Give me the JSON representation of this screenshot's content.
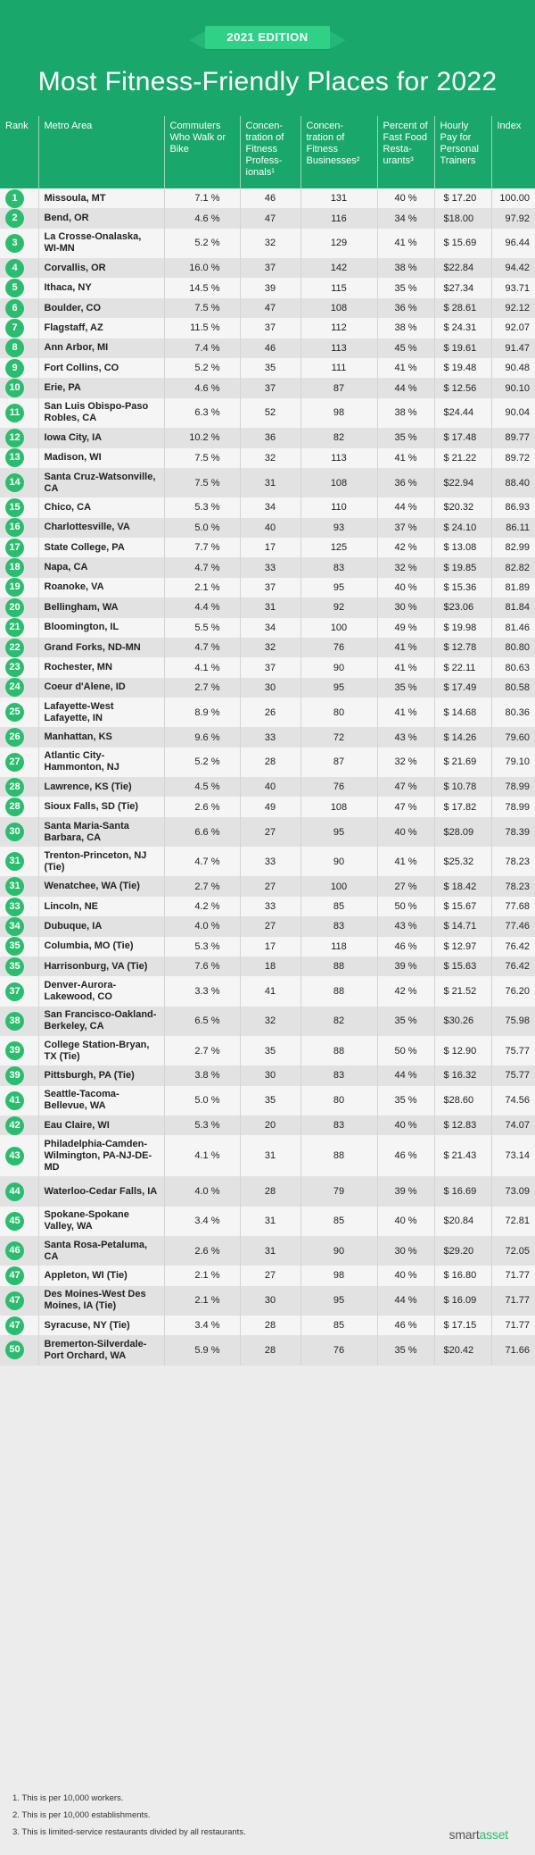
{
  "banner": "2021 EDITION",
  "title": "Most Fitness-Friendly Places for 2022",
  "columns": [
    "Rank",
    "Metro Area",
    "Commuters Who Walk or Bike",
    "Concen- tration of Fitness Profess- ionals¹",
    "Concen- tration of Fitness Businesses²",
    "Percent of Fast Food Resta- urants³",
    "Hourly Pay for Personal Trainers",
    "Index"
  ],
  "rows": [
    {
      "rank": "1",
      "metro": "Missoula, MT",
      "walk": "7.1 %",
      "pros": "46",
      "biz": "131",
      "ff": "40 %",
      "pay": "$ 17.20",
      "index": "100.00"
    },
    {
      "rank": "2",
      "metro": "Bend, OR",
      "walk": "4.6 %",
      "pros": "47",
      "biz": "116",
      "ff": "34 %",
      "pay": "$18.00",
      "index": "97.92"
    },
    {
      "rank": "3",
      "metro": "La Crosse-Onalaska, WI-MN",
      "walk": "5.2 %",
      "pros": "32",
      "biz": "129",
      "ff": "41 %",
      "pay": "$ 15.69",
      "index": "96.44"
    },
    {
      "rank": "4",
      "metro": "Corvallis, OR",
      "walk": "16.0 %",
      "pros": "37",
      "biz": "142",
      "ff": "38 %",
      "pay": "$22.84",
      "index": "94.42"
    },
    {
      "rank": "5",
      "metro": "Ithaca, NY",
      "walk": "14.5 %",
      "pros": "39",
      "biz": "115",
      "ff": "35 %",
      "pay": "$27.34",
      "index": "93.71"
    },
    {
      "rank": "6",
      "metro": "Boulder, CO",
      "walk": "7.5 %",
      "pros": "47",
      "biz": "108",
      "ff": "36 %",
      "pay": "$ 28.61",
      "index": "92.12"
    },
    {
      "rank": "7",
      "metro": "Flagstaff, AZ",
      "walk": "11.5 %",
      "pros": "37",
      "biz": "112",
      "ff": "38 %",
      "pay": "$ 24.31",
      "index": "92.07"
    },
    {
      "rank": "8",
      "metro": "Ann Arbor, MI",
      "walk": "7.4 %",
      "pros": "46",
      "biz": "113",
      "ff": "45 %",
      "pay": "$  19.61",
      "index": "91.47"
    },
    {
      "rank": "9",
      "metro": "Fort Collins, CO",
      "walk": "5.2 %",
      "pros": "35",
      "biz": "111",
      "ff": "41 %",
      "pay": "$ 19.48",
      "index": "90.48"
    },
    {
      "rank": "10",
      "metro": "Erie, PA",
      "walk": "4.6 %",
      "pros": "37",
      "biz": "87",
      "ff": "44 %",
      "pay": "$ 12.56",
      "index": "90.10"
    },
    {
      "rank": "11",
      "metro": "San Luis Obispo-Paso Robles, CA",
      "walk": "6.3 %",
      "pros": "52",
      "biz": "98",
      "ff": "38 %",
      "pay": "$24.44",
      "index": "90.04"
    },
    {
      "rank": "12",
      "metro": "Iowa City, IA",
      "walk": "10.2 %",
      "pros": "36",
      "biz": "82",
      "ff": "35 %",
      "pay": "$ 17.48",
      "index": "89.77"
    },
    {
      "rank": "13",
      "metro": "Madison, WI",
      "walk": "7.5 %",
      "pros": "32",
      "biz": "113",
      "ff": "41 %",
      "pay": "$ 21.22",
      "index": "89.72"
    },
    {
      "rank": "14",
      "metro": "Santa Cruz-Watsonville, CA",
      "walk": "7.5 %",
      "pros": "31",
      "biz": "108",
      "ff": "36 %",
      "pay": "$22.94",
      "index": "88.40"
    },
    {
      "rank": "15",
      "metro": "Chico, CA",
      "walk": "5.3 %",
      "pros": "34",
      "biz": "110",
      "ff": "44 %",
      "pay": "$20.32",
      "index": "86.93"
    },
    {
      "rank": "16",
      "metro": "Charlottesville, VA",
      "walk": "5.0 %",
      "pros": "40",
      "biz": "93",
      "ff": "37 %",
      "pay": "$ 24.10",
      "index": "86.11"
    },
    {
      "rank": "17",
      "metro": "State College, PA",
      "walk": "7.7 %",
      "pros": "17",
      "biz": "125",
      "ff": "42 %",
      "pay": "$ 13.08",
      "index": "82.99"
    },
    {
      "rank": "18",
      "metro": "Napa, CA",
      "walk": "4.7 %",
      "pros": "33",
      "biz": "83",
      "ff": "32 %",
      "pay": "$ 19.85",
      "index": "82.82"
    },
    {
      "rank": "19",
      "metro": "Roanoke, VA",
      "walk": "2.1 %",
      "pros": "37",
      "biz": "95",
      "ff": "40 %",
      "pay": "$ 15.36",
      "index": "81.89"
    },
    {
      "rank": "20",
      "metro": "Bellingham, WA",
      "walk": "4.4 %",
      "pros": "31",
      "biz": "92",
      "ff": "30 %",
      "pay": "$23.06",
      "index": "81.84"
    },
    {
      "rank": "21",
      "metro": "Bloomington, IL",
      "walk": "5.5 %",
      "pros": "34",
      "biz": "100",
      "ff": "49 %",
      "pay": "$ 19.98",
      "index": "81.46"
    },
    {
      "rank": "22",
      "metro": "Grand Forks, ND-MN",
      "walk": "4.7 %",
      "pros": "32",
      "biz": "76",
      "ff": "41 %",
      "pay": "$ 12.78",
      "index": "80.80"
    },
    {
      "rank": "23",
      "metro": "Rochester, MN",
      "walk": "4.1 %",
      "pros": "37",
      "biz": "90",
      "ff": "41 %",
      "pay": "$  22.11",
      "index": "80.63"
    },
    {
      "rank": "24",
      "metro": "Coeur d'Alene, ID",
      "walk": "2.7 %",
      "pros": "30",
      "biz": "95",
      "ff": "35 %",
      "pay": "$ 17.49",
      "index": "80.58"
    },
    {
      "rank": "25",
      "metro": "Lafayette-West Lafayette, IN",
      "walk": "8.9 %",
      "pros": "26",
      "biz": "80",
      "ff": "41 %",
      "pay": "$ 14.68",
      "index": "80.36"
    },
    {
      "rank": "26",
      "metro": "Manhattan, KS",
      "walk": "9.6 %",
      "pros": "33",
      "biz": "72",
      "ff": "43 %",
      "pay": "$ 14.26",
      "index": "79.60"
    },
    {
      "rank": "27",
      "metro": "Atlantic City-Hammonton, NJ",
      "walk": "5.2 %",
      "pros": "28",
      "biz": "87",
      "ff": "32 %",
      "pay": "$ 21.69",
      "index": "79.10"
    },
    {
      "rank": "28",
      "metro": "Lawrence, KS (Tie)",
      "walk": "4.5 %",
      "pros": "40",
      "biz": "76",
      "ff": "47 %",
      "pay": "$ 10.78",
      "index": "78.99"
    },
    {
      "rank": "28",
      "metro": "Sioux Falls, SD (Tie)",
      "walk": "2.6 %",
      "pros": "49",
      "biz": "108",
      "ff": "47 %",
      "pay": "$ 17.82",
      "index": "78.99"
    },
    {
      "rank": "30",
      "metro": "Santa Maria-Santa Barbara, CA",
      "walk": "6.6 %",
      "pros": "27",
      "biz": "95",
      "ff": "40 %",
      "pay": "$28.09",
      "index": "78.39"
    },
    {
      "rank": "31",
      "metro": "Trenton-Princeton, NJ (Tie)",
      "walk": "4.7 %",
      "pros": "33",
      "biz": "90",
      "ff": "41 %",
      "pay": "$25.32",
      "index": "78.23"
    },
    {
      "rank": "31",
      "metro": "Wenatchee, WA (Tie)",
      "walk": "2.7 %",
      "pros": "27",
      "biz": "100",
      "ff": "27 %",
      "pay": "$ 18.42",
      "index": "78.23"
    },
    {
      "rank": "33",
      "metro": "Lincoln, NE",
      "walk": "4.2 %",
      "pros": "33",
      "biz": "85",
      "ff": "50 %",
      "pay": "$ 15.67",
      "index": "77.68"
    },
    {
      "rank": "34",
      "metro": "Dubuque, IA",
      "walk": "4.0 %",
      "pros": "27",
      "biz": "83",
      "ff": "43 %",
      "pay": "$  14.71",
      "index": "77.46"
    },
    {
      "rank": "35",
      "metro": "Columbia, MO (Tie)",
      "walk": "5.3 %",
      "pros": "17",
      "biz": "118",
      "ff": "46 %",
      "pay": "$ 12.97",
      "index": "76.42"
    },
    {
      "rank": "35",
      "metro": "Harrisonburg, VA (Tie)",
      "walk": "7.6 %",
      "pros": "18",
      "biz": "88",
      "ff": "39 %",
      "pay": "$ 15.63",
      "index": "76.42"
    },
    {
      "rank": "37",
      "metro": "Denver-Aurora-Lakewood, CO",
      "walk": "3.3 %",
      "pros": "41",
      "biz": "88",
      "ff": "42 %",
      "pay": "$ 21.52",
      "index": "76.20"
    },
    {
      "rank": "38",
      "metro": "San Francisco-Oakland-Berkeley, CA",
      "walk": "6.5 %",
      "pros": "32",
      "biz": "82",
      "ff": "35 %",
      "pay": "$30.26",
      "index": "75.98"
    },
    {
      "rank": "39",
      "metro": "College Station-Bryan, TX (Tie)",
      "walk": "2.7 %",
      "pros": "35",
      "biz": "88",
      "ff": "50 %",
      "pay": "$ 12.90",
      "index": "75.77"
    },
    {
      "rank": "39",
      "metro": "Pittsburgh, PA (Tie)",
      "walk": "3.8 %",
      "pros": "30",
      "biz": "83",
      "ff": "44 %",
      "pay": "$ 16.32",
      "index": "75.77"
    },
    {
      "rank": "41",
      "metro": "Seattle-Tacoma-Bellevue, WA",
      "walk": "5.0 %",
      "pros": "35",
      "biz": "80",
      "ff": "35 %",
      "pay": "$28.60",
      "index": "74.56"
    },
    {
      "rank": "42",
      "metro": "Eau Claire, WI",
      "walk": "5.3 %",
      "pros": "20",
      "biz": "83",
      "ff": "40 %",
      "pay": "$ 12.83",
      "index": "74.07"
    },
    {
      "rank": "43",
      "metro": "Philadelphia-Camden-Wilmington, PA-NJ-DE-MD",
      "walk": "4.1 %",
      "pros": "31",
      "biz": "88",
      "ff": "46 %",
      "pay": "$ 21.43",
      "index": "73.14"
    },
    {
      "rank": "44",
      "metro": "Waterloo-Cedar Falls, IA",
      "walk": "4.0 %",
      "pros": "28",
      "biz": "79",
      "ff": "39 %",
      "pay": "$ 16.69",
      "index": "73.09"
    },
    {
      "rank": "45",
      "metro": "Spokane-Spokane Valley, WA",
      "walk": "3.4 %",
      "pros": "31",
      "biz": "85",
      "ff": "40 %",
      "pay": "$20.84",
      "index": "72.81"
    },
    {
      "rank": "46",
      "metro": "Santa Rosa-Petaluma, CA",
      "walk": "2.6 %",
      "pros": "31",
      "biz": "90",
      "ff": "30 %",
      "pay": "$29.20",
      "index": "72.05"
    },
    {
      "rank": "47",
      "metro": "Appleton, WI (Tie)",
      "walk": "2.1 %",
      "pros": "27",
      "biz": "98",
      "ff": "40 %",
      "pay": "$ 16.80",
      "index": "71.77"
    },
    {
      "rank": "47",
      "metro": "Des Moines-West Des Moines, IA (Tie)",
      "walk": "2.1 %",
      "pros": "30",
      "biz": "95",
      "ff": "44 %",
      "pay": "$ 16.09",
      "index": "71.77"
    },
    {
      "rank": "47",
      "metro": "Syracuse, NY (Tie)",
      "walk": "3.4 %",
      "pros": "28",
      "biz": "85",
      "ff": "46 %",
      "pay": "$  17.15",
      "index": "71.77"
    },
    {
      "rank": "50",
      "metro": "Bremerton-Silverdale-Port Orchard, WA",
      "walk": "5.9 %",
      "pros": "28",
      "biz": "76",
      "ff": "35 %",
      "pay": "$20.42",
      "index": "71.66"
    }
  ],
  "footnotes": [
    "1. This is per 10,000 workers.",
    "2. This is per 10,000 establishments.",
    "3. This is limited-service restaurants divided by all restaurants."
  ],
  "logo": {
    "part1": "smart",
    "part2": "asset"
  },
  "colors": {
    "header_green": "#1aa76b",
    "rank_circle": "#2bbd6f",
    "banner_green": "#2fd187"
  }
}
